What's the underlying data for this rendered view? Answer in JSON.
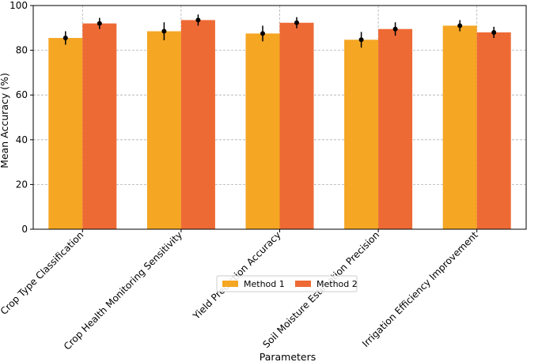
{
  "chart_data": {
    "type": "bar",
    "title": "",
    "xlabel": "Parameters",
    "ylabel": "Mean Accuracy (%)",
    "ylim": [
      0,
      100
    ],
    "yticks": [
      0,
      20,
      40,
      60,
      80,
      100
    ],
    "grid": true,
    "grid_style": "dashed",
    "legend_position": "bottom-center",
    "categories": [
      "Crop Type Classification",
      "Crop Health Monitoring Sensitivity",
      "Yield Prediction Accuracy",
      "Soil Moisture Estimation Precision",
      "Irrigation Efficiency Improvement"
    ],
    "series": [
      {
        "name": "Method 1",
        "color": "#F5A623",
        "values": [
          85.5,
          88.5,
          87.5,
          84.7,
          91.0
        ],
        "errors": [
          3.0,
          4.0,
          3.5,
          3.5,
          2.5
        ]
      },
      {
        "name": "Method 2",
        "color": "#EE6A35",
        "values": [
          92.0,
          93.5,
          92.3,
          89.5,
          88.0
        ],
        "errors": [
          2.5,
          2.5,
          2.5,
          3.0,
          2.5
        ]
      }
    ]
  }
}
